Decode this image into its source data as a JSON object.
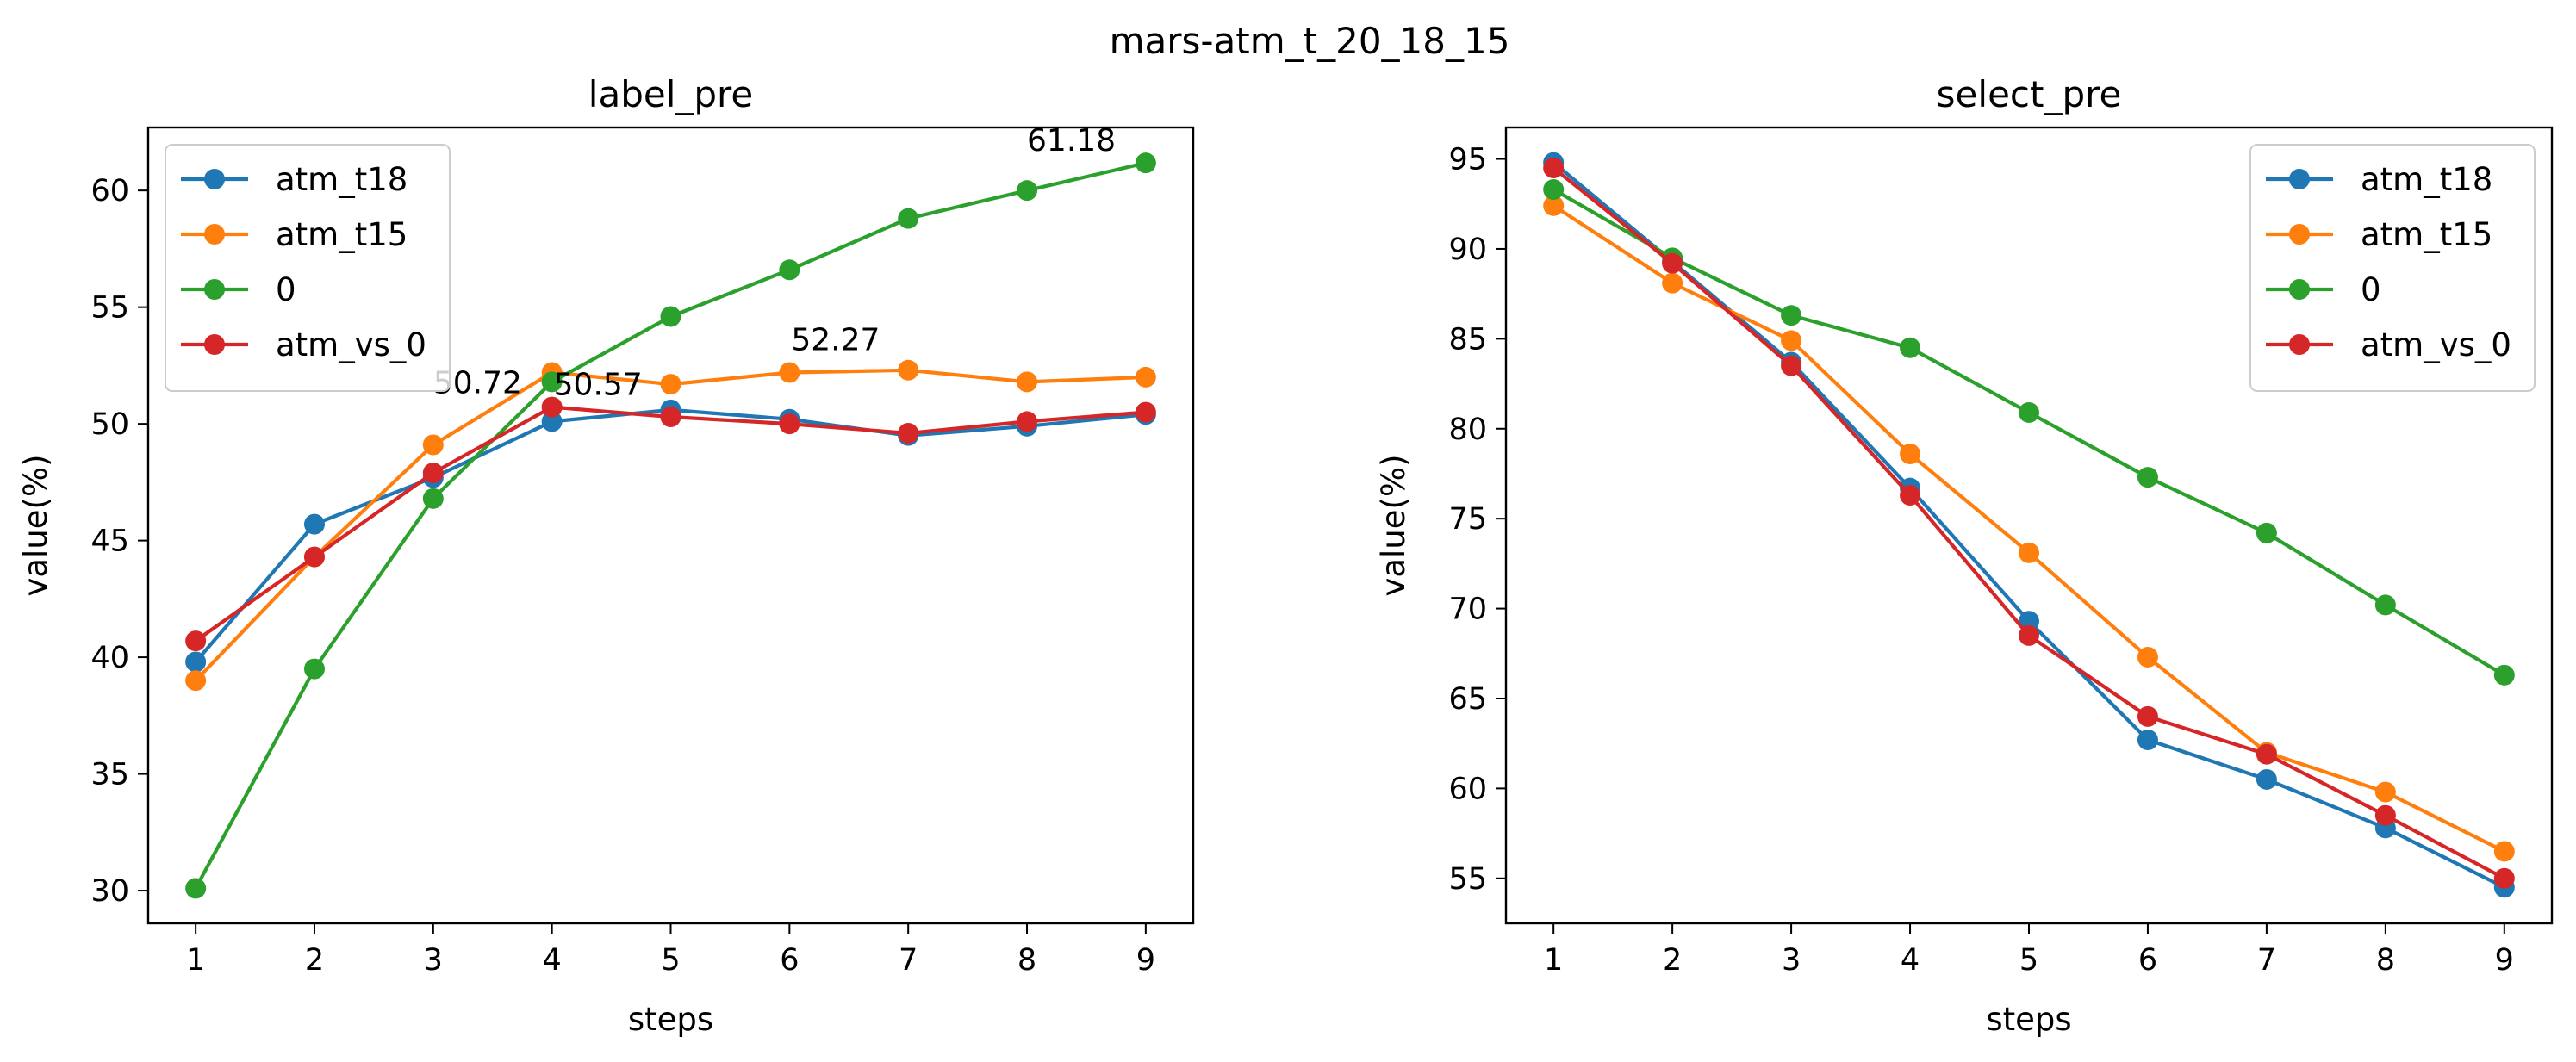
{
  "figure": {
    "suptitle": "mars-atm_t_20_18_15"
  },
  "chart_data": [
    {
      "type": "line",
      "title": "label_pre",
      "xlabel": "steps",
      "ylabel": "value(%)",
      "x": [
        1,
        2,
        3,
        4,
        5,
        6,
        7,
        8,
        9
      ],
      "xlim": [
        0.6,
        9.4
      ],
      "ylim": [
        28.6,
        62.7
      ],
      "xticks": [
        1,
        2,
        3,
        4,
        5,
        6,
        7,
        8,
        9
      ],
      "yticks": [
        30,
        35,
        40,
        45,
        50,
        55,
        60
      ],
      "grid": false,
      "legend": "upper-left",
      "series": [
        {
          "name": "atm_t18",
          "color": "#1f77b4",
          "values": [
            39.8,
            45.7,
            47.7,
            50.1,
            50.6,
            50.2,
            49.5,
            49.9,
            50.4
          ]
        },
        {
          "name": "atm_t15",
          "color": "#ff7f0e",
          "values": [
            39.0,
            44.3,
            49.1,
            52.2,
            51.7,
            52.2,
            52.3,
            51.8,
            52.0
          ]
        },
        {
          "name": "0",
          "color": "#2ca02c",
          "values": [
            30.1,
            39.5,
            46.8,
            51.8,
            54.6,
            56.6,
            58.8,
            60.0,
            61.18
          ]
        },
        {
          "name": "atm_vs_0",
          "color": "#d62728",
          "values": [
            40.7,
            44.3,
            47.9,
            50.72,
            50.3,
            50.0,
            49.6,
            50.1,
            50.5
          ]
        }
      ],
      "annotations": [
        {
          "text": "50.72",
          "x": 3.0,
          "y": 50.72
        },
        {
          "text": "50.57",
          "x": 4.0,
          "y": 50.57
        },
        {
          "text": "52.27",
          "x": 6.0,
          "y": 52.27
        },
        {
          "text": "61.18",
          "x": 8.0,
          "y": 61.18
        }
      ]
    },
    {
      "type": "line",
      "title": "select_pre",
      "xlabel": "steps",
      "ylabel": "value(%)",
      "x": [
        1,
        2,
        3,
        4,
        5,
        6,
        7,
        8,
        9
      ],
      "xlim": [
        0.6,
        9.4
      ],
      "ylim": [
        52.5,
        96.75
      ],
      "xticks": [
        1,
        2,
        3,
        4,
        5,
        6,
        7,
        8,
        9
      ],
      "yticks": [
        55,
        60,
        65,
        70,
        75,
        80,
        85,
        90,
        95
      ],
      "grid": false,
      "legend": "upper-right",
      "series": [
        {
          "name": "atm_t18",
          "color": "#1f77b4",
          "values": [
            94.8,
            89.3,
            83.7,
            76.7,
            69.3,
            62.7,
            60.5,
            57.8,
            54.5
          ]
        },
        {
          "name": "atm_t15",
          "color": "#ff7f0e",
          "values": [
            92.4,
            88.1,
            84.9,
            78.6,
            73.1,
            67.3,
            62.0,
            59.8,
            56.5
          ]
        },
        {
          "name": "0",
          "color": "#2ca02c",
          "values": [
            93.3,
            89.5,
            86.3,
            84.5,
            80.9,
            77.3,
            74.2,
            70.2,
            66.3
          ]
        },
        {
          "name": "atm_vs_0",
          "color": "#d62728",
          "values": [
            94.5,
            89.2,
            83.5,
            76.3,
            68.5,
            64.0,
            61.9,
            58.5,
            55.0
          ]
        }
      ],
      "annotations": []
    }
  ]
}
